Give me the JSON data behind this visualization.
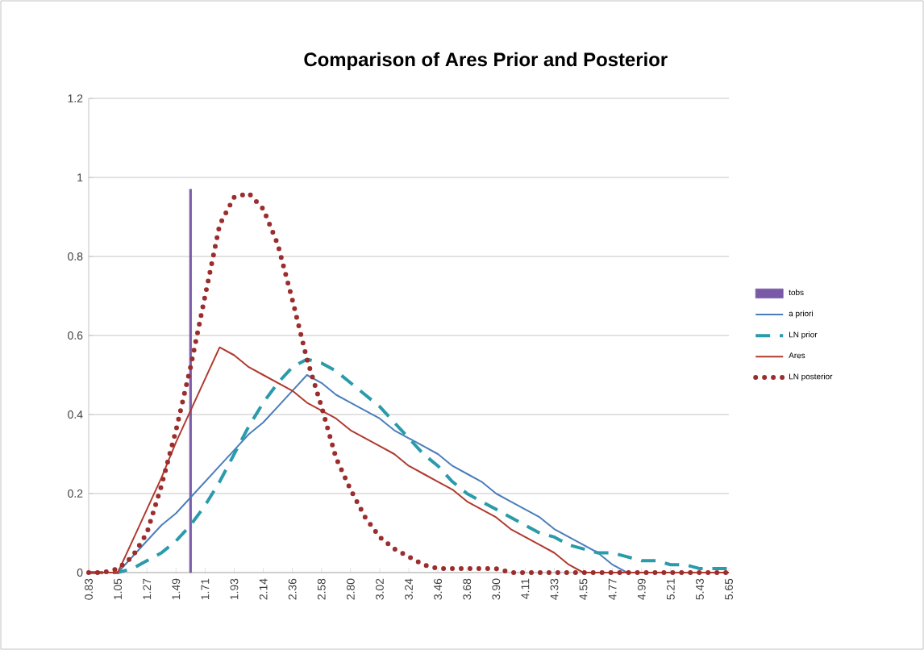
{
  "chart_data": {
    "type": "line",
    "title": "Comparison of Ares Prior and Posterior",
    "categories": [
      "0.83",
      null,
      "1.05",
      null,
      "1.27",
      null,
      "1.49",
      null,
      "1.71",
      null,
      "1.93",
      null,
      "2.14",
      null,
      "2.36",
      null,
      "2.58",
      null,
      "2.80",
      null,
      "3.02",
      null,
      "3.24",
      null,
      "3.46",
      null,
      "3.68",
      null,
      "3.90",
      null,
      "4.11",
      null,
      "4.33",
      null,
      "4.55",
      null,
      "4.77",
      null,
      "4.99",
      null,
      "5.21",
      null,
      "5.43",
      null,
      "5.65"
    ],
    "ylim": [
      0,
      1.2
    ],
    "yticks": [
      0,
      0.2,
      0.4,
      0.6,
      0.8,
      1,
      1.2
    ],
    "grid": "y",
    "legend": "right",
    "marker": "none",
    "series": [
      {
        "name": "tobs",
        "type": "bar",
        "color": "#7a5aa8",
        "values": [
          null,
          null,
          null,
          null,
          null,
          null,
          null,
          0.97,
          null,
          null,
          null,
          null,
          null,
          null,
          null,
          null,
          null,
          null,
          null,
          null,
          null,
          null,
          null,
          null,
          null,
          null,
          null,
          null,
          null,
          null,
          null,
          null,
          null,
          null,
          null,
          null,
          null,
          null,
          null,
          null,
          null,
          null,
          null,
          null,
          null
        ]
      },
      {
        "name": "a priori",
        "line_style": "solid",
        "color": "#4a7ebb",
        "values": [
          0,
          0,
          0,
          0.04,
          0.08,
          0.12,
          0.15,
          0.19,
          0.23,
          0.27,
          0.31,
          0.35,
          0.38,
          0.42,
          0.46,
          0.5,
          0.48,
          0.45,
          0.43,
          0.41,
          0.39,
          0.36,
          0.34,
          0.32,
          0.3,
          0.27,
          0.25,
          0.23,
          0.2,
          0.18,
          0.16,
          0.14,
          0.11,
          0.09,
          0.07,
          0.05,
          0.02,
          0,
          0,
          0,
          0,
          0,
          0,
          0,
          0
        ]
      },
      {
        "name": "LN prior",
        "line_style": "dashed",
        "color": "#2a9baa",
        "values": [
          0,
          0,
          0,
          0.01,
          0.03,
          0.05,
          0.08,
          0.12,
          0.17,
          0.23,
          0.3,
          0.37,
          0.43,
          0.48,
          0.52,
          0.54,
          0.53,
          0.51,
          0.48,
          0.45,
          0.42,
          0.38,
          0.34,
          0.3,
          0.27,
          0.23,
          0.2,
          0.18,
          0.16,
          0.14,
          0.12,
          0.1,
          0.09,
          0.07,
          0.06,
          0.05,
          0.05,
          0.04,
          0.03,
          0.03,
          0.02,
          0.02,
          0.01,
          0.01,
          0.01
        ]
      },
      {
        "name": "Ares",
        "line_style": "solid",
        "color": "#b03a2e",
        "values": [
          0,
          0,
          0,
          0.08,
          0.16,
          0.24,
          0.33,
          0.41,
          0.49,
          0.57,
          0.55,
          0.52,
          0.5,
          0.48,
          0.46,
          0.43,
          0.41,
          0.39,
          0.36,
          0.34,
          0.32,
          0.3,
          0.27,
          0.25,
          0.23,
          0.21,
          0.18,
          0.16,
          0.14,
          0.11,
          0.09,
          0.07,
          0.05,
          0.02,
          0,
          0,
          0,
          0,
          0,
          0,
          0,
          0,
          0,
          0,
          0
        ]
      },
      {
        "name": "LN posterior",
        "line_style": "dotted",
        "color": "#9b2d2d",
        "values": [
          0,
          0,
          0.01,
          0.04,
          0.1,
          0.22,
          0.36,
          0.52,
          0.7,
          0.88,
          0.95,
          0.96,
          0.92,
          0.83,
          0.69,
          0.54,
          0.42,
          0.29,
          0.21,
          0.14,
          0.09,
          0.06,
          0.04,
          0.02,
          0.01,
          0.01,
          0.01,
          0.01,
          0.01,
          0,
          0,
          0,
          0,
          0,
          0,
          0,
          0,
          0,
          0,
          0,
          0,
          0,
          0,
          0,
          0
        ]
      }
    ]
  }
}
